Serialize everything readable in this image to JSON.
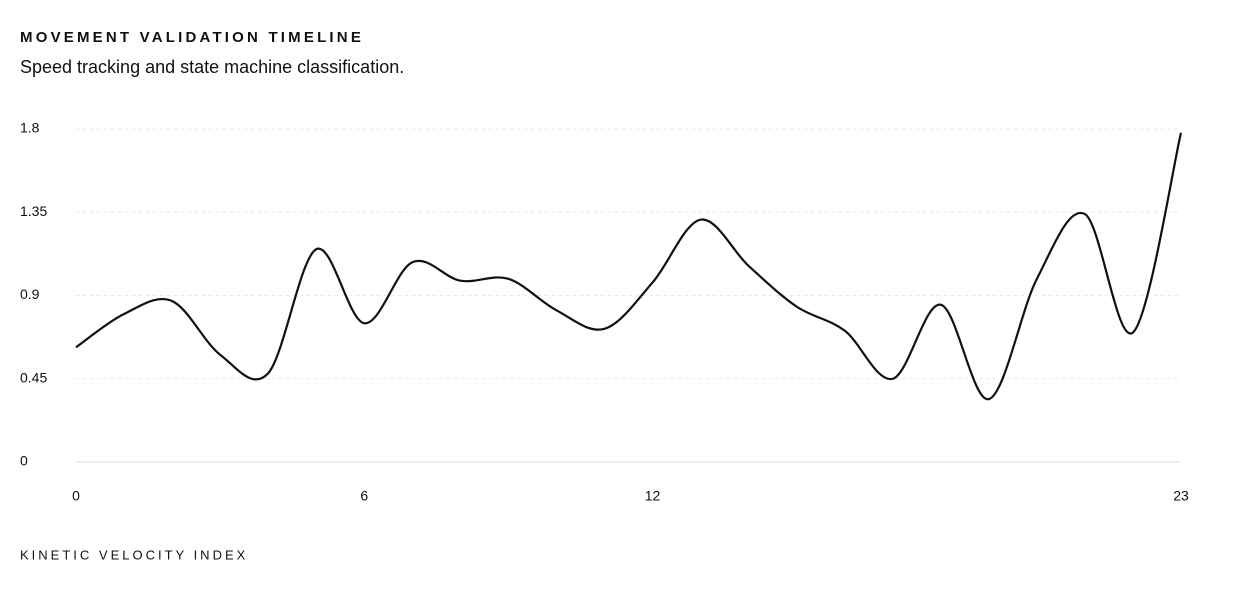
{
  "chart_data": {
    "type": "line",
    "title": "MOVEMENT VALIDATION TIMELINE",
    "subtitle": "Speed tracking and state machine classification.",
    "x_label": "KINETIC VELOCITY INDEX",
    "x": [
      0,
      1,
      2,
      3,
      4,
      5,
      6,
      7,
      8,
      9,
      10,
      11,
      12,
      13,
      14,
      15,
      16,
      17,
      18,
      19,
      20,
      21,
      22,
      23
    ],
    "series": [
      {
        "color": "#111111",
        "values": [
          0.62,
          0.8,
          0.87,
          0.58,
          0.48,
          1.15,
          0.75,
          1.08,
          0.98,
          0.99,
          0.82,
          0.72,
          0.97,
          1.31,
          1.06,
          0.84,
          0.71,
          0.45,
          0.85,
          0.34,
          0.99,
          1.34,
          0.7,
          1.78
        ]
      }
    ],
    "xlim": [
      0,
      23
    ],
    "xticks": [
      0,
      6,
      12,
      23
    ],
    "ylim": [
      0,
      1.8
    ],
    "yticks": [
      0,
      0.45,
      0.9,
      1.35,
      1.8
    ],
    "grid": true
  }
}
